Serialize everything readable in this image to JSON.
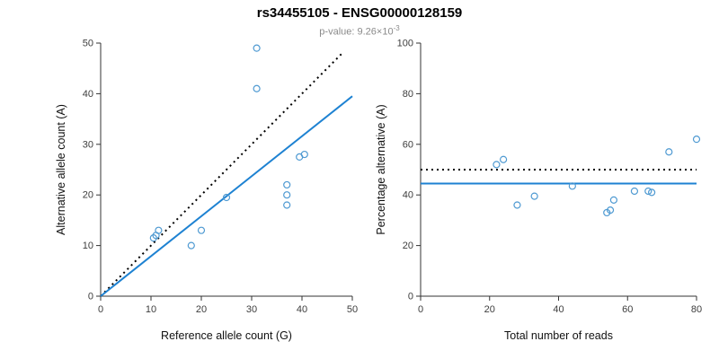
{
  "header": {
    "title": "rs34455105 - ENSG00000128159",
    "subtitle_base": "p-value: 9.26×10",
    "subtitle_exponent": "-3"
  },
  "colors": {
    "point": "#4f9ad2",
    "regression_line": "#1e82d2",
    "dotted_line": "#000000",
    "axis": "#333333",
    "tick_label": "#3d3d3d",
    "axis_label": "#111111"
  },
  "chart_data": [
    {
      "type": "scatter",
      "title": "",
      "xlabel": "Reference allele count (G)",
      "ylabel": "Alternative allele count (A)",
      "xlim": [
        0,
        50
      ],
      "ylim": [
        0,
        50
      ],
      "xticks": [
        0,
        10,
        20,
        30,
        40,
        50
      ],
      "yticks": [
        0,
        10,
        20,
        30,
        40,
        50
      ],
      "grid": false,
      "legend": "none",
      "points": [
        [
          10.5,
          11.5
        ],
        [
          11,
          12
        ],
        [
          11.5,
          13
        ],
        [
          18,
          10
        ],
        [
          20,
          13
        ],
        [
          25,
          19.5
        ],
        [
          31,
          49
        ],
        [
          31,
          41
        ],
        [
          37,
          22
        ],
        [
          37,
          20
        ],
        [
          37,
          18
        ],
        [
          39.5,
          27.5
        ],
        [
          40.5,
          28
        ]
      ],
      "lines": [
        {
          "name": "identity-line",
          "x1": 0,
          "y1": 0,
          "x2": 48,
          "y2": 48,
          "dash": true,
          "color": "#000000",
          "width": 2
        },
        {
          "name": "regression-line",
          "x1": 0,
          "y1": 0,
          "x2": 50,
          "y2": 39.5,
          "dash": false,
          "color": "#1e82d2",
          "width": 2
        }
      ]
    },
    {
      "type": "scatter",
      "title": "",
      "xlabel": "Total number of reads",
      "ylabel": "Percentage alternative (A)",
      "xlim": [
        0,
        80
      ],
      "ylim": [
        0,
        100
      ],
      "xticks": [
        0,
        20,
        40,
        60,
        80
      ],
      "yticks": [
        0,
        20,
        40,
        60,
        80,
        100
      ],
      "grid": false,
      "legend": "none",
      "points": [
        [
          22,
          52
        ],
        [
          24,
          54
        ],
        [
          28,
          36
        ],
        [
          33,
          39.5
        ],
        [
          44,
          43.5
        ],
        [
          54,
          33
        ],
        [
          55,
          34
        ],
        [
          56,
          38
        ],
        [
          62,
          41.5
        ],
        [
          66,
          41.5
        ],
        [
          67,
          41
        ],
        [
          72,
          57
        ],
        [
          80,
          62
        ]
      ],
      "lines": [
        {
          "name": "expected-percentage-line",
          "x1": 0,
          "y1": 50,
          "x2": 80,
          "y2": 50,
          "dash": true,
          "color": "#000000",
          "width": 2
        },
        {
          "name": "observed-percentage-line",
          "x1": 0,
          "y1": 44.5,
          "x2": 80,
          "y2": 44.5,
          "dash": false,
          "color": "#1e82d2",
          "width": 2
        }
      ]
    }
  ]
}
